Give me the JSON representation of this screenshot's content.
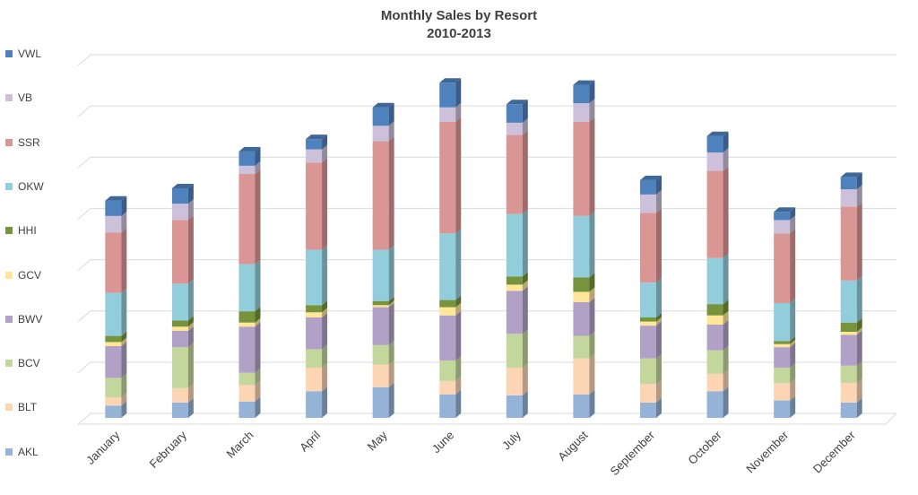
{
  "chart_data": {
    "type": "bar",
    "stacked": true,
    "title": "Monthly Sales by Resort",
    "subtitle": "2010-2013",
    "xlabel": "",
    "ylabel": "",
    "y_tick_labels_shown": false,
    "grid": true,
    "legend_position": "left",
    "categories": [
      "January",
      "February",
      "March",
      "April",
      "May",
      "June",
      "July",
      "August",
      "September",
      "October",
      "November",
      "December"
    ],
    "series": [
      {
        "name": "AKL",
        "color": "#95b3d7",
        "values": [
          12,
          15,
          16,
          26,
          30,
          23,
          22,
          23,
          15,
          26,
          17,
          15
        ]
      },
      {
        "name": "BLT",
        "color": "#fcd5b5",
        "values": [
          8,
          14,
          16,
          23,
          22,
          13,
          27,
          35,
          18,
          17,
          17,
          19
        ]
      },
      {
        "name": "BCV",
        "color": "#c3d69b",
        "values": [
          19,
          40,
          12,
          18,
          19,
          20,
          33,
          22,
          25,
          23,
          15,
          17
        ]
      },
      {
        "name": "BWV",
        "color": "#b2a1c7",
        "values": [
          31,
          16,
          45,
          31,
          37,
          44,
          42,
          33,
          32,
          25,
          20,
          30
        ]
      },
      {
        "name": "GCV",
        "color": "#ffe699",
        "values": [
          4,
          4,
          4,
          5,
          2,
          8,
          6,
          10,
          4,
          9,
          3,
          3
        ]
      },
      {
        "name": "HHI",
        "color": "#77933c",
        "values": [
          6,
          6,
          11,
          7,
          4,
          7,
          8,
          14,
          4,
          11,
          3,
          9
        ]
      },
      {
        "name": "OKW",
        "color": "#92cddc",
        "values": [
          42,
          36,
          46,
          54,
          50,
          65,
          61,
          60,
          34,
          45,
          37,
          41
        ]
      },
      {
        "name": "SSR",
        "color": "#da9694",
        "values": [
          59,
          62,
          88,
          85,
          106,
          109,
          77,
          92,
          68,
          85,
          68,
          72
        ]
      },
      {
        "name": "VB",
        "color": "#ccc0da",
        "values": [
          16,
          16,
          8,
          13,
          15,
          14,
          12,
          18,
          18,
          18,
          13,
          17
        ]
      },
      {
        "name": "VWL",
        "color": "#4f81bd",
        "values": [
          15,
          15,
          14,
          10,
          18,
          24,
          18,
          18,
          14,
          16,
          8,
          12
        ]
      }
    ],
    "y_gridline_step": 50,
    "ylim": [
      0,
      350
    ]
  }
}
